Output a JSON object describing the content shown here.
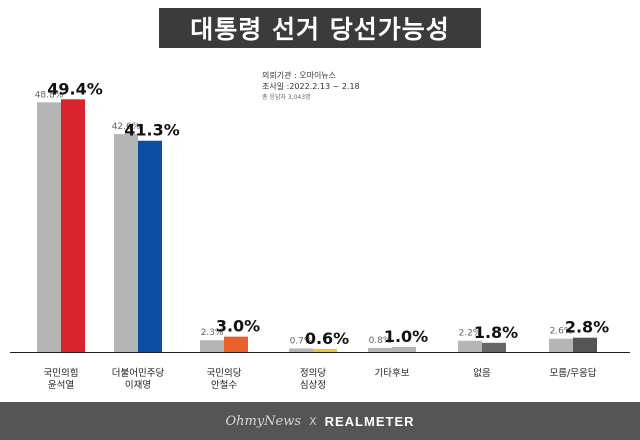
{
  "title": "대통령 선거 당선가능성",
  "survey": {
    "line1": "의뢰기관 : 오마이뉴스",
    "line2": "조사일 :2022.2.13 ~ 2.18",
    "line3": "총 응답자 3,043명"
  },
  "footer": {
    "left": "OhmyNews",
    "sep": "X",
    "right": "REALMETER"
  },
  "chart_data": {
    "type": "bar",
    "categories": [
      [
        "국민의힘",
        "윤석열"
      ],
      [
        "더불어민주당",
        "이재명"
      ],
      [
        "국민의당",
        "안철수"
      ],
      [
        "정의당",
        "심상정"
      ],
      [
        "기타후보"
      ],
      [
        "없음"
      ],
      [
        "모름/무응답"
      ]
    ],
    "series": [
      {
        "values": [
          48.8,
          42.6,
          2.3,
          0.7,
          0.8,
          2.2,
          2.6
        ],
        "labels": [
          "48.8%",
          "42.6%",
          "2.3%",
          "0.7%",
          "0.8%",
          "2.2%",
          "2.6%"
        ],
        "color": "#b5b5b5"
      },
      {
        "values": [
          49.4,
          41.3,
          3.0,
          0.6,
          1.0,
          1.8,
          2.8
        ],
        "labels": [
          "49.4%",
          "41.3%",
          "3.0%",
          "0.6%",
          "1.0%",
          "1.8%",
          "2.8%"
        ],
        "colors": [
          "#d9232d",
          "#0b4ea2",
          "#e8602c",
          "#f2c230",
          "#b3b3b3",
          "#666666",
          "#555555"
        ]
      }
    ],
    "ylim": [
      0,
      52
    ],
    "grid": false,
    "legend": "none"
  }
}
